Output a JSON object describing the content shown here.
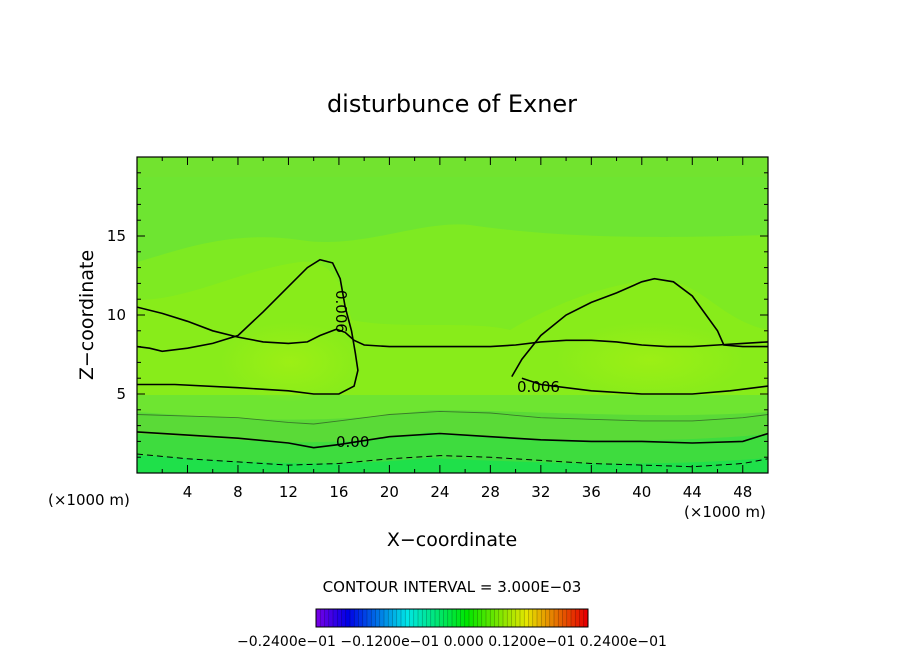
{
  "chart_data": {
    "type": "contour",
    "title": "disturbunce of Exner",
    "xlabel": "X−coordinate",
    "ylabel": "Z−coordinate",
    "x_unit_left": "(×1000 m)",
    "x_unit_right": "(×1000 m)",
    "xlim": [
      0,
      50
    ],
    "ylim": [
      0,
      20
    ],
    "xticks": [
      "4",
      "8",
      "12",
      "16",
      "20",
      "24",
      "28",
      "32",
      "36",
      "40",
      "44",
      "48"
    ],
    "yticks": [
      "5",
      "10",
      "15"
    ],
    "contour_interval_label": "CONTOUR INTERVAL = 3.000E−03",
    "contour_labels": [
      "0.006",
      "0.006",
      "0.00"
    ],
    "colorbar_labels": "−0.2400e−01  −0.1200e−01  0.000  0.1200e−01  0.2400e−01",
    "colormap": "rainbow",
    "contours": [
      {
        "level": 0.006,
        "style": "solid",
        "points": [
          [
            0,
            10.5
          ],
          [
            2,
            10.1
          ],
          [
            4,
            9.6
          ],
          [
            6,
            9.0
          ],
          [
            8,
            8.6
          ],
          [
            10,
            8.3
          ],
          [
            12,
            8.2
          ],
          [
            13.5,
            8.3
          ],
          [
            14.5,
            8.7
          ],
          [
            15.8,
            9.1
          ],
          [
            16.5,
            8.9
          ],
          [
            17.2,
            8.4
          ],
          [
            18,
            8.1
          ],
          [
            20,
            8.0
          ],
          [
            24,
            8.0
          ],
          [
            28,
            8.0
          ],
          [
            30,
            8.1
          ],
          [
            32,
            8.3
          ],
          [
            34,
            8.4
          ],
          [
            36,
            8.4
          ],
          [
            38,
            8.3
          ],
          [
            40,
            8.1
          ],
          [
            42,
            8.0
          ],
          [
            44,
            8.0
          ],
          [
            46,
            8.1
          ],
          [
            48,
            8.2
          ],
          [
            50,
            8.3
          ]
        ]
      },
      {
        "level": 0.006,
        "style": "solid",
        "points": [
          [
            0,
            5.6
          ],
          [
            3,
            5.6
          ],
          [
            8,
            5.4
          ],
          [
            12,
            5.2
          ],
          [
            14,
            5.0
          ],
          [
            16,
            5.0
          ],
          [
            17.2,
            5.5
          ],
          [
            17.5,
            6.5
          ],
          [
            17.3,
            7.6
          ],
          [
            17,
            9
          ],
          [
            16.5,
            10.5
          ],
          [
            16.1,
            12.3
          ],
          [
            15.5,
            13.3
          ],
          [
            14.5,
            13.5
          ],
          [
            13.5,
            13.0
          ],
          [
            12,
            11.8
          ],
          [
            10,
            10.2
          ],
          [
            8,
            8.7
          ],
          [
            6,
            8.2
          ],
          [
            4,
            7.9
          ],
          [
            2,
            7.7
          ],
          [
            1,
            7.9
          ],
          [
            0,
            8.0
          ]
        ]
      },
      {
        "level": 0.006,
        "style": "solid",
        "points": [
          [
            29.7,
            6.1
          ],
          [
            30.5,
            7.2
          ],
          [
            32,
            8.7
          ],
          [
            34,
            10
          ],
          [
            36,
            10.8
          ],
          [
            38,
            11.4
          ],
          [
            40,
            12.1
          ],
          [
            41,
            12.3
          ],
          [
            42.5,
            12.1
          ],
          [
            44,
            11.2
          ],
          [
            45,
            10.1
          ],
          [
            46,
            9.0
          ],
          [
            46.5,
            8.1
          ],
          [
            48,
            8.0
          ],
          [
            50,
            8.0
          ]
        ]
      },
      {
        "level": 0.006,
        "style": "solid",
        "points": [
          [
            30.5,
            6.0
          ],
          [
            32,
            5.6
          ],
          [
            36,
            5.2
          ],
          [
            40,
            5.0
          ],
          [
            44,
            5.0
          ],
          [
            47,
            5.2
          ],
          [
            50,
            5.5
          ]
        ]
      },
      {
        "level": 0.003,
        "style": "thin",
        "points": [
          [
            0,
            3.7
          ],
          [
            4,
            3.6
          ],
          [
            8,
            3.5
          ],
          [
            12,
            3.2
          ],
          [
            14,
            3.1
          ],
          [
            16,
            3.3
          ],
          [
            20,
            3.7
          ],
          [
            24,
            3.9
          ],
          [
            28,
            3.8
          ],
          [
            32,
            3.5
          ],
          [
            36,
            3.4
          ],
          [
            40,
            3.3
          ],
          [
            44,
            3.3
          ],
          [
            48,
            3.5
          ],
          [
            50,
            3.7
          ]
        ]
      },
      {
        "level": 0.0,
        "style": "solid",
        "points": [
          [
            0,
            2.6
          ],
          [
            4,
            2.4
          ],
          [
            8,
            2.2
          ],
          [
            12,
            1.9
          ],
          [
            14,
            1.6
          ],
          [
            16,
            1.8
          ],
          [
            20,
            2.3
          ],
          [
            24,
            2.5
          ],
          [
            28,
            2.3
          ],
          [
            32,
            2.1
          ],
          [
            36,
            2.0
          ],
          [
            40,
            2.0
          ],
          [
            44,
            1.9
          ],
          [
            48,
            2.0
          ],
          [
            50,
            2.5
          ]
        ]
      },
      {
        "level": -0.003,
        "style": "dashed",
        "points": [
          [
            0,
            1.2
          ],
          [
            4,
            0.9
          ],
          [
            8,
            0.7
          ],
          [
            12,
            0.5
          ],
          [
            16,
            0.6
          ],
          [
            20,
            0.9
          ],
          [
            24,
            1.1
          ],
          [
            28,
            1.0
          ],
          [
            32,
            0.8
          ],
          [
            36,
            0.6
          ],
          [
            40,
            0.5
          ],
          [
            44,
            0.4
          ],
          [
            48,
            0.6
          ],
          [
            50,
            0.9
          ]
        ]
      }
    ]
  }
}
